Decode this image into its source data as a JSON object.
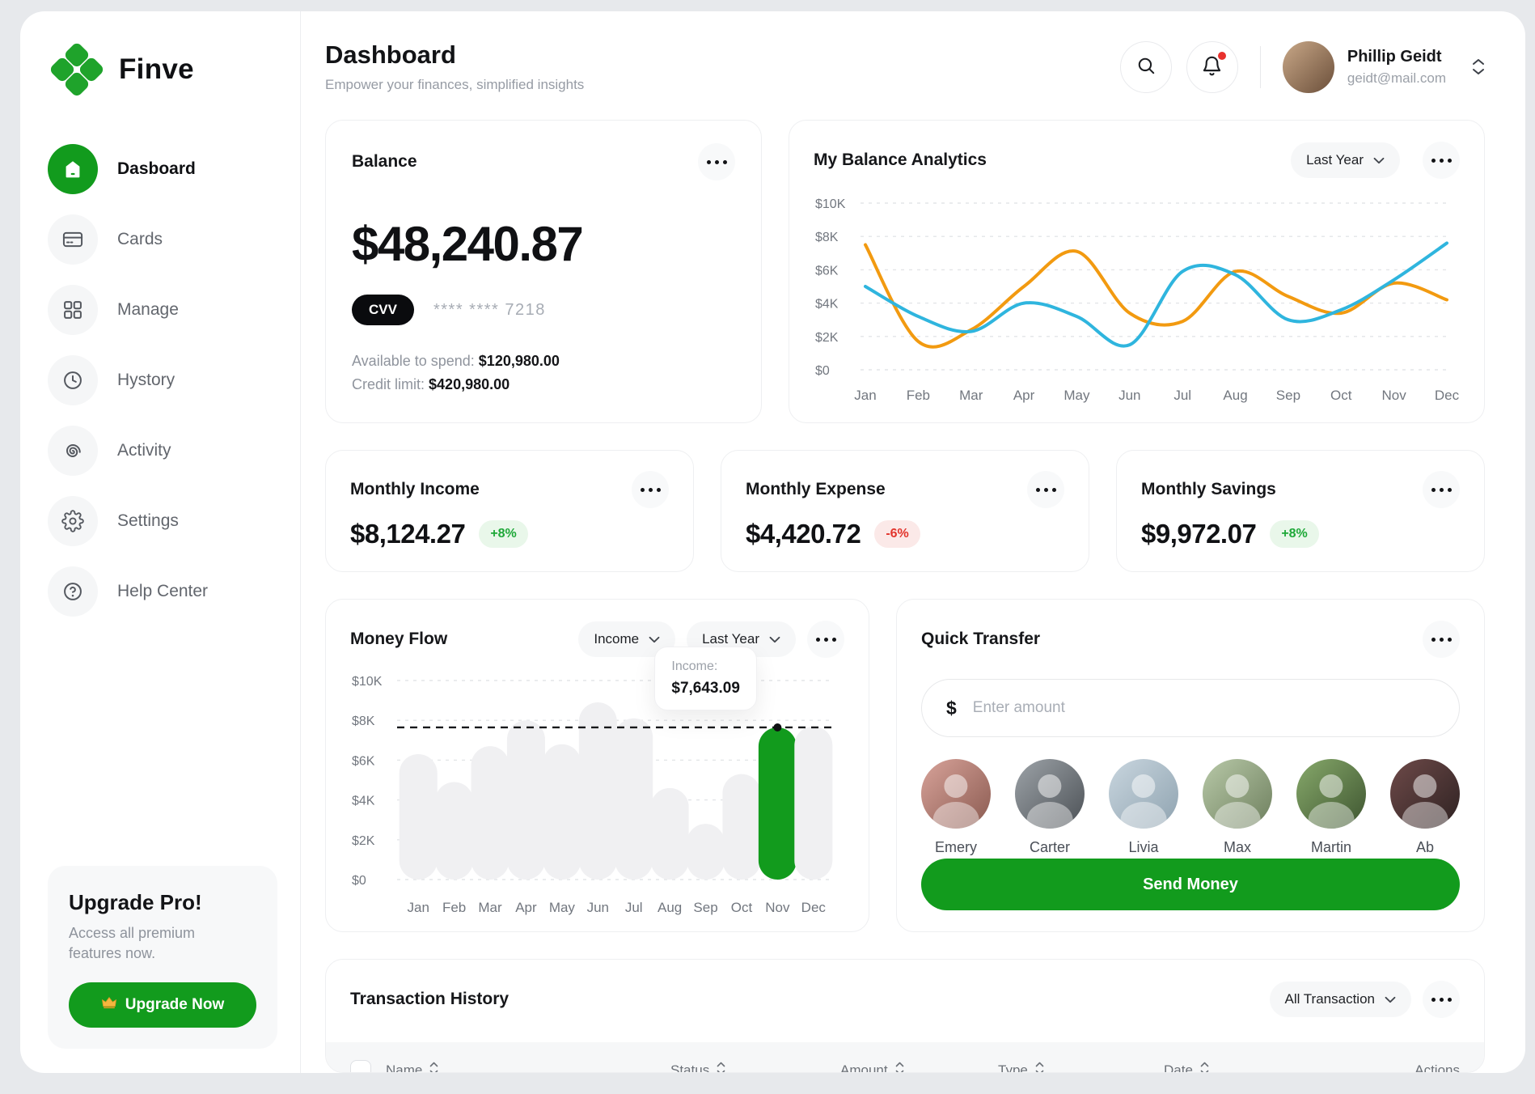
{
  "app": {
    "name": "Finve",
    "logo_icon": "four-diamonds",
    "accent_green": "#129B1D"
  },
  "sidebar": {
    "items": [
      {
        "label": "Dasboard",
        "icon": "home",
        "active": true
      },
      {
        "label": "Cards",
        "icon": "credit-card",
        "active": false
      },
      {
        "label": "Manage",
        "icon": "grid",
        "active": false
      },
      {
        "label": "Hystory",
        "icon": "clock",
        "active": false
      },
      {
        "label": "Activity",
        "icon": "spiral",
        "active": false
      },
      {
        "label": "Settings",
        "icon": "gear",
        "active": false
      },
      {
        "label": "Help Center",
        "icon": "question-circle",
        "active": false
      }
    ],
    "upgrade": {
      "title": "Upgrade Pro!",
      "description": "Access all premium features now.",
      "button_icon": "crown",
      "button_label": "Upgrade Now"
    }
  },
  "header": {
    "title": "Dashboard",
    "subtitle": "Empower your finances, simplified insights",
    "search_icon": "magnifier",
    "notification_icon": "bell",
    "notification_unread": true,
    "user": {
      "name": "Phillip Geidt",
      "email": "geidt@mail.com"
    }
  },
  "balance_card": {
    "title": "Balance",
    "amount": "$48,240.87",
    "cvv_label": "CVV",
    "card_number_masked": "**** **** 7218",
    "available_label": "Available to spend:",
    "available_value": "$120,980.00",
    "credit_label": "Credit limit:",
    "credit_value": "$420,980.00"
  },
  "analytics_card": {
    "title": "My Balance Analytics",
    "range_label": "Last Year"
  },
  "metrics": [
    {
      "title": "Monthly Income",
      "value": "$8,124.27",
      "delta": "+8%",
      "trend": "up"
    },
    {
      "title": "Monthly Expense",
      "value": "$4,420.72",
      "delta": "-6%",
      "trend": "down"
    },
    {
      "title": "Monthly Savings",
      "value": "$9,972.07",
      "delta": "+8%",
      "trend": "up"
    }
  ],
  "money_flow_card": {
    "title": "Money Flow",
    "metric_filter_label": "Income",
    "range_label": "Last Year",
    "tooltip": {
      "label": "Income:",
      "value": "$7,643.09"
    }
  },
  "quick_transfer": {
    "title": "Quick Transfer",
    "currency_symbol": "$",
    "input_placeholder": "Enter amount",
    "contacts": [
      "Emery",
      "Carter",
      "Livia",
      "Max",
      "Martin",
      "Ab"
    ],
    "send_button_label": "Send Money"
  },
  "transactions": {
    "title": "Transaction History",
    "filter_label": "All Transaction",
    "columns": [
      "Name",
      "Status",
      "Amount",
      "Type",
      "Date",
      "Actions"
    ],
    "sortable_columns": [
      "Name",
      "Status",
      "Amount",
      "Type",
      "Date"
    ]
  },
  "chart_data": [
    {
      "id": "balance_analytics",
      "type": "line",
      "title": "My Balance Analytics",
      "x": [
        "Jan",
        "Feb",
        "Mar",
        "Apr",
        "May",
        "Jun",
        "Jul",
        "Aug",
        "Sep",
        "Oct",
        "Nov",
        "Dec"
      ],
      "series": [
        {
          "name": "orange-series",
          "color": "#F29A10",
          "values": [
            7500,
            1700,
            2400,
            5000,
            7100,
            3400,
            2900,
            5900,
            4400,
            3400,
            5200,
            4200
          ]
        },
        {
          "name": "blue-series",
          "color": "#2FB5DE",
          "values": [
            5000,
            3200,
            2300,
            4000,
            3200,
            1500,
            5900,
            5700,
            3000,
            3600,
            5400,
            7600
          ]
        }
      ],
      "ylim": [
        0,
        10000
      ],
      "yticks": [
        "$0",
        "$2K",
        "$4K",
        "$6K",
        "$8K",
        "$10K"
      ],
      "grid": "dashed-horizontal",
      "legend": "none"
    },
    {
      "id": "money_flow",
      "type": "bar",
      "title": "Money Flow",
      "categories": [
        "Jan",
        "Feb",
        "Mar",
        "Apr",
        "May",
        "Jun",
        "Jul",
        "Aug",
        "Sep",
        "Oct",
        "Nov",
        "Dec"
      ],
      "values": [
        6300,
        4900,
        6700,
        8000,
        6800,
        8900,
        8100,
        4600,
        2800,
        5300,
        7643.09,
        7700
      ],
      "highlight_index": 10,
      "highlight_color": "#129B1D",
      "bar_color": "#F0F0F2",
      "reference_line_value": 7643.09,
      "reference_line_style": "black-dashed",
      "ylim": [
        0,
        10000
      ],
      "yticks": [
        "$0",
        "$2K",
        "$4K",
        "$6K",
        "$8K",
        "$10K"
      ],
      "grid": "dashed-horizontal",
      "tooltip": {
        "label": "Income:",
        "value": "$7,643.09",
        "month": "Nov"
      }
    }
  ]
}
